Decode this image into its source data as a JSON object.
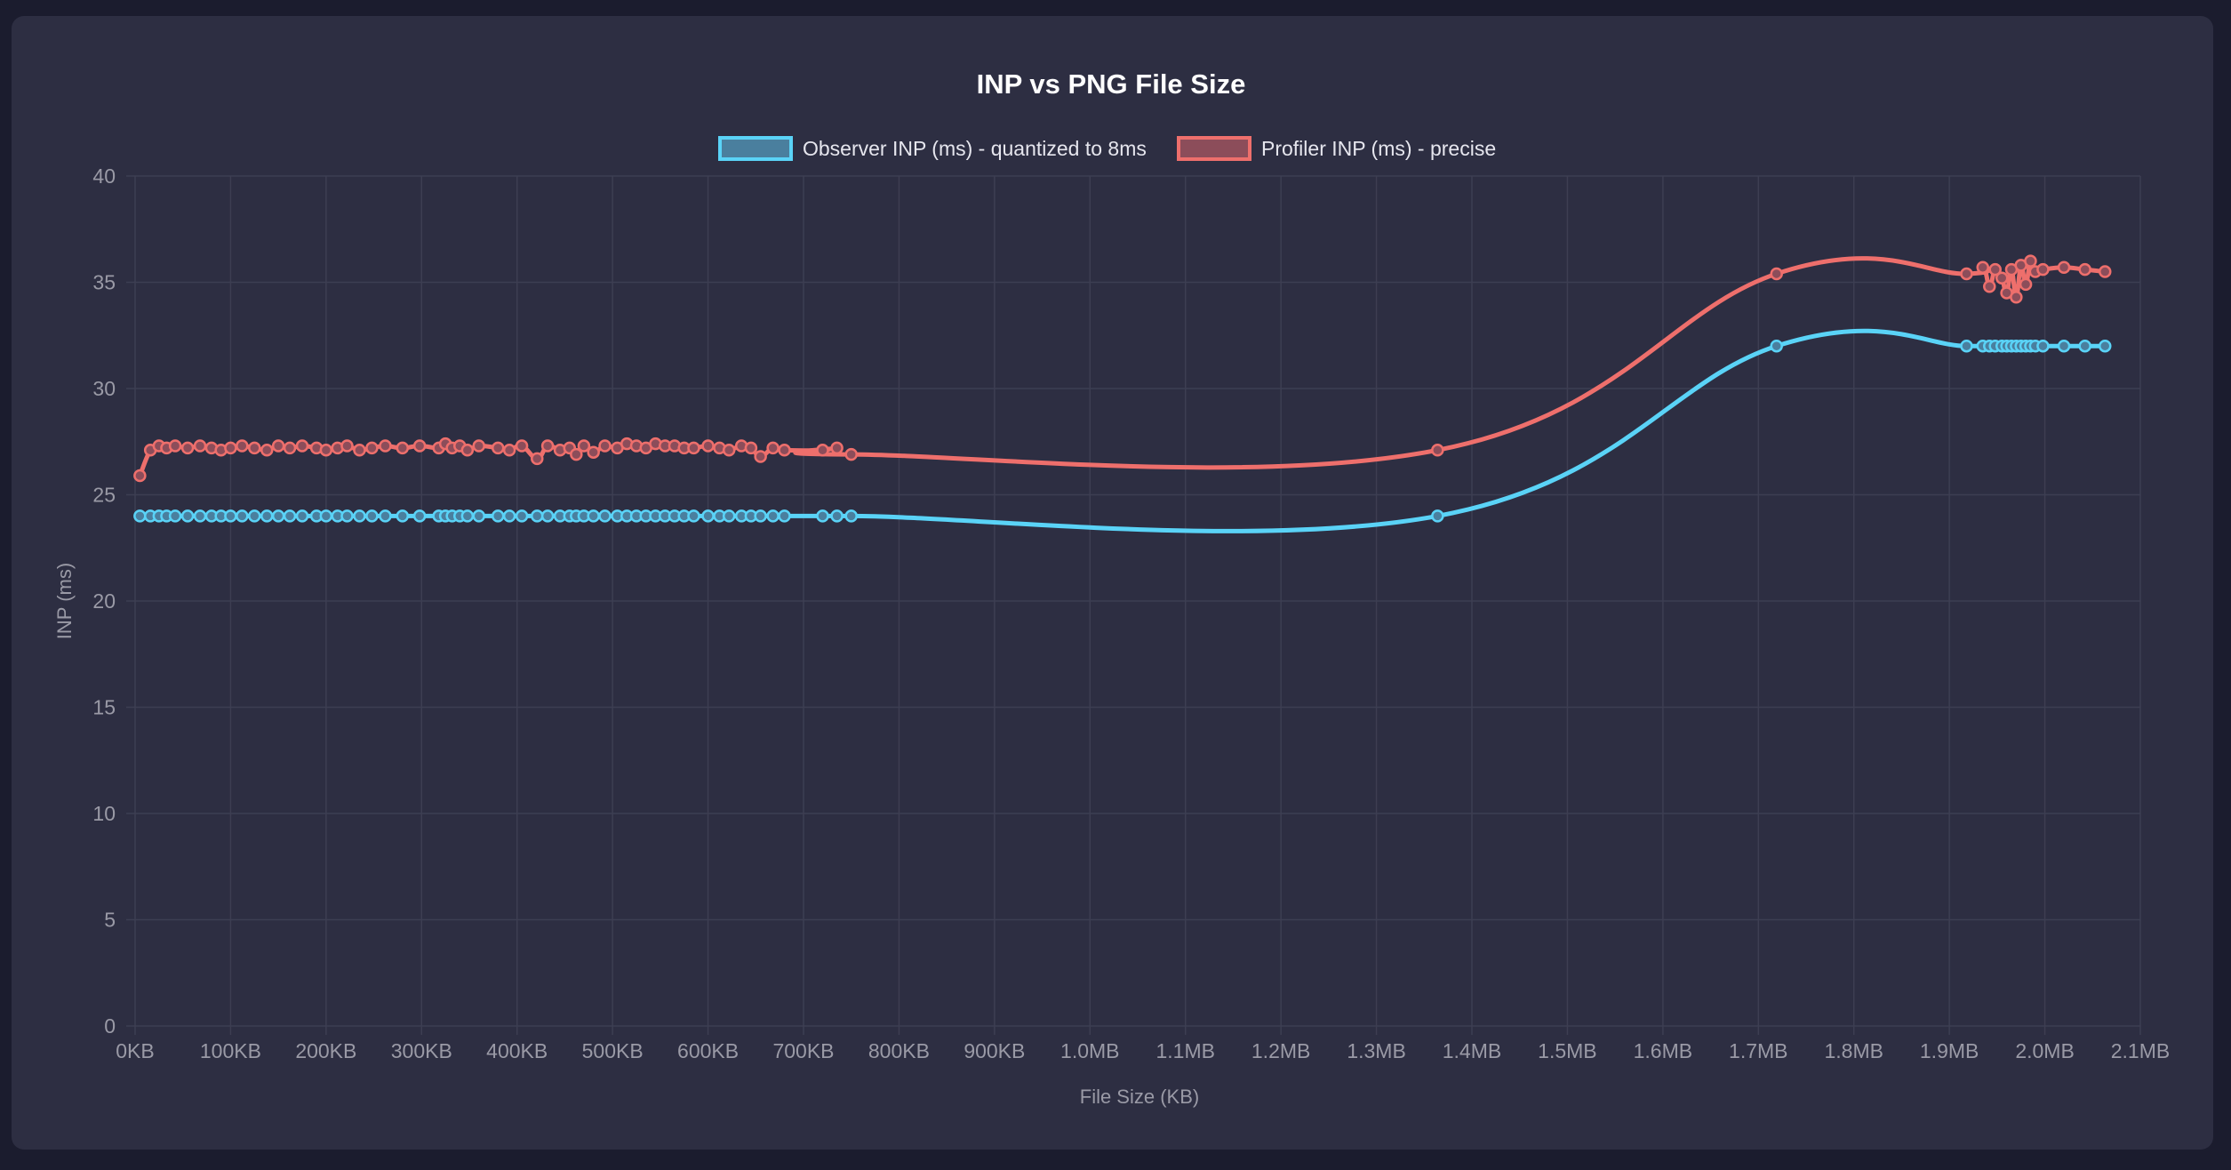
{
  "chart_data": {
    "type": "line",
    "title": "INP vs PNG File Size",
    "xlabel": "File Size (KB)",
    "ylabel": "INP (ms)",
    "xlim": [
      0,
      2100
    ],
    "ylim": [
      0,
      40
    ],
    "x_ticks": [
      "0KB",
      "100KB",
      "200KB",
      "300KB",
      "400KB",
      "500KB",
      "600KB",
      "700KB",
      "800KB",
      "900KB",
      "1.0MB",
      "1.1MB",
      "1.2MB",
      "1.3MB",
      "1.4MB",
      "1.5MB",
      "1.6MB",
      "1.7MB",
      "1.8MB",
      "1.9MB",
      "2.0MB",
      "2.1MB"
    ],
    "y_ticks": [
      "0",
      "5",
      "10",
      "15",
      "20",
      "25",
      "30",
      "35",
      "40"
    ],
    "grid": true,
    "legend_position": "top",
    "x": [
      5,
      16,
      25,
      33,
      42,
      55,
      68,
      80,
      90,
      100,
      112,
      125,
      138,
      150,
      162,
      175,
      190,
      200,
      212,
      222,
      235,
      248,
      262,
      280,
      298,
      318,
      325,
      332,
      340,
      348,
      360,
      380,
      392,
      405,
      421,
      432,
      445,
      455,
      462,
      470,
      480,
      492,
      505,
      515,
      525,
      535,
      545,
      555,
      565,
      575,
      585,
      600,
      612,
      622,
      635,
      645,
      655,
      668,
      680,
      720,
      735,
      750,
      1364,
      1719,
      1918,
      1935,
      1942,
      1948,
      1955,
      1960,
      1965,
      1970,
      1975,
      1980,
      1985,
      1990,
      1998,
      2020,
      2042,
      2063
    ],
    "series": [
      {
        "name": "Observer INP (ms) - quantized to 8ms",
        "color": "#5ad3f7",
        "fill": "#4a7f9e",
        "values": [
          24,
          24,
          24,
          24,
          24,
          24,
          24,
          24,
          24,
          24,
          24,
          24,
          24,
          24,
          24,
          24,
          24,
          24,
          24,
          24,
          24,
          24,
          24,
          24,
          24,
          24,
          24,
          24,
          24,
          24,
          24,
          24,
          24,
          24,
          24,
          24,
          24,
          24,
          24,
          24,
          24,
          24,
          24,
          24,
          24,
          24,
          24,
          24,
          24,
          24,
          24,
          24,
          24,
          24,
          24,
          24,
          24,
          24,
          24,
          24,
          24,
          24,
          24,
          32,
          32,
          32,
          32,
          32,
          32,
          32,
          32,
          32,
          32,
          32,
          32,
          32,
          32,
          32,
          32,
          32
        ]
      },
      {
        "name": "Profiler INP (ms) - precise",
        "color": "#ee6f6c",
        "fill": "#8c4d5a",
        "values": [
          25.9,
          27.1,
          27.3,
          27.2,
          27.3,
          27.2,
          27.3,
          27.2,
          27.1,
          27.2,
          27.3,
          27.2,
          27.1,
          27.3,
          27.2,
          27.3,
          27.2,
          27.1,
          27.2,
          27.3,
          27.1,
          27.2,
          27.3,
          27.2,
          27.3,
          27.2,
          27.4,
          27.2,
          27.3,
          27.1,
          27.3,
          27.2,
          27.1,
          27.3,
          26.7,
          27.3,
          27.1,
          27.2,
          26.9,
          27.3,
          27.0,
          27.3,
          27.2,
          27.4,
          27.3,
          27.2,
          27.4,
          27.3,
          27.3,
          27.2,
          27.2,
          27.3,
          27.2,
          27.1,
          27.3,
          27.2,
          26.8,
          27.2,
          27.1,
          27.1,
          27.2,
          26.9,
          27.1,
          35.4,
          35.4,
          35.7,
          34.8,
          35.6,
          35.2,
          34.5,
          35.6,
          34.3,
          35.8,
          34.9,
          36.0,
          35.5,
          35.6,
          35.7,
          35.6,
          35.5
        ]
      }
    ]
  }
}
